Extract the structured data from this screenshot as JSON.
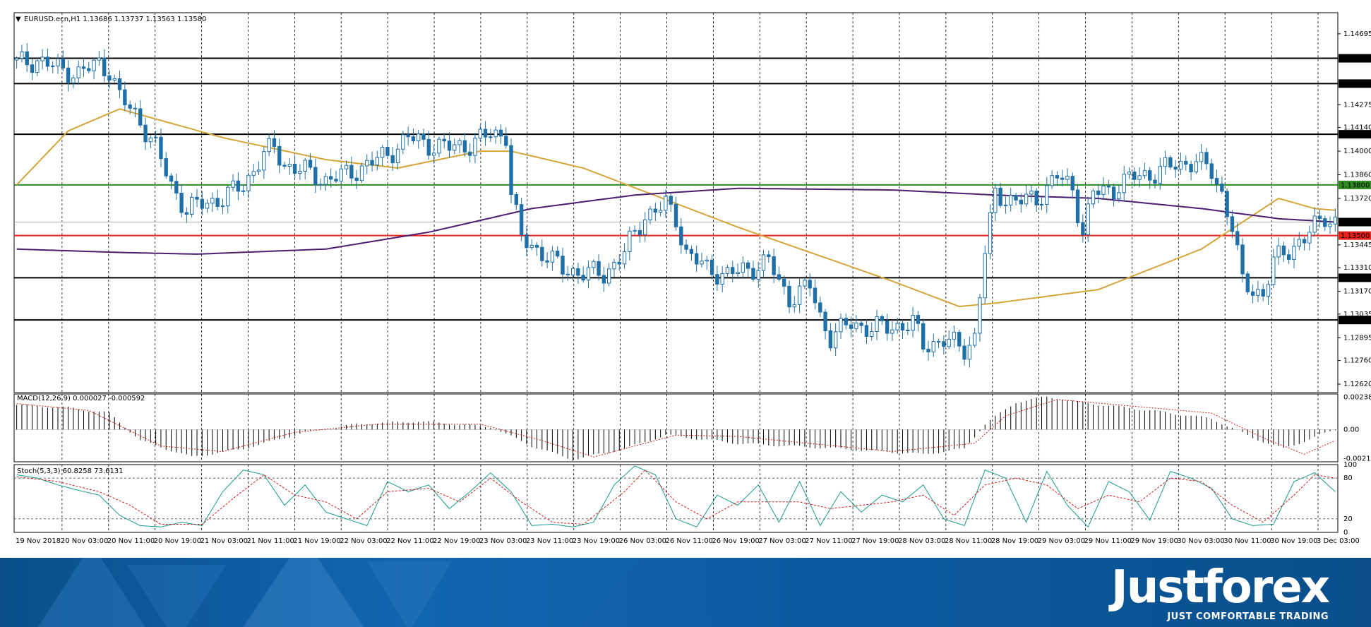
{
  "chart_title": "EURUSD.ecn,H1  1.13686 1.13737 1.13563 1.13580",
  "chart_data": [
    {
      "type": "candlestick",
      "symbol": "EURUSD.ecn,H1",
      "ohlc_last": {
        "open": 1.13686,
        "high": 1.13737,
        "low": 1.13563,
        "close": 1.1358
      },
      "ylim": [
        1.1257,
        1.1482
      ],
      "price_ticks": [
        "1.14695",
        "1.14275",
        "1.14140",
        "1.14000",
        "1.13860",
        "1.13720",
        "1.13445",
        "1.13310",
        "1.13170",
        "1.13035",
        "1.12895",
        "1.12760",
        "1.12620"
      ],
      "x_labels": [
        "19 Nov 2018",
        "20 Nov 03:00",
        "20 Nov 11:00",
        "20 Nov 19:00",
        "21 Nov 03:00",
        "21 Nov 11:00",
        "21 Nov 19:00",
        "22 Nov 03:00",
        "22 Nov 11:00",
        "22 Nov 19:00",
        "23 Nov 03:00",
        "23 Nov 11:00",
        "23 Nov 19:00",
        "26 Nov 03:00",
        "26 Nov 11:00",
        "26 Nov 19:00",
        "27 Nov 03:00",
        "27 Nov 11:00",
        "27 Nov 19:00",
        "28 Nov 03:00",
        "28 Nov 11:00",
        "28 Nov 19:00",
        "29 Nov 03:00",
        "29 Nov 11:00",
        "29 Nov 19:00",
        "30 Nov 03:00",
        "30 Nov 11:00",
        "30 Nov 19:00",
        "3 Dec 03:00"
      ],
      "horizontal_levels": [
        {
          "label": "1.14550",
          "value": 1.1455,
          "color": "#000000"
        },
        {
          "label": "1.14400",
          "value": 1.144,
          "color": "#000000"
        },
        {
          "label": "1.14100",
          "value": 1.141,
          "color": "#000000"
        },
        {
          "label": "1.13800",
          "value": 1.138,
          "color": "#2e8b22"
        },
        {
          "label": "1.13500",
          "value": 1.135,
          "color": "#e8201a"
        },
        {
          "label": "1.13250",
          "value": 1.1325,
          "color": "#000000"
        },
        {
          "label": "1.13000",
          "value": 1.13,
          "color": "#000000"
        }
      ],
      "current_price": {
        "label": "1.13580",
        "value": 1.1358
      },
      "close_path": [
        [
          0,
          1.1452
        ],
        [
          4,
          1.1454
        ],
        [
          8,
          1.1449
        ],
        [
          12,
          1.1446
        ],
        [
          16,
          1.1452
        ],
        [
          18,
          1.1448
        ],
        [
          20,
          1.1432
        ],
        [
          24,
          1.1418
        ],
        [
          27,
          1.1402
        ],
        [
          30,
          1.138
        ],
        [
          33,
          1.1365
        ],
        [
          36,
          1.1369
        ],
        [
          40,
          1.1372
        ],
        [
          44,
          1.138
        ],
        [
          48,
          1.1398
        ],
        [
          50,
          1.1402
        ],
        [
          52,
          1.1392
        ],
        [
          56,
          1.1388
        ],
        [
          60,
          1.1383
        ],
        [
          64,
          1.1386
        ],
        [
          68,
          1.1392
        ],
        [
          72,
          1.1398
        ],
        [
          76,
          1.1408
        ],
        [
          80,
          1.1404
        ],
        [
          84,
          1.1402
        ],
        [
          88,
          1.1404
        ],
        [
          92,
          1.141
        ],
        [
          95,
          1.141
        ],
        [
          96,
          1.1375
        ],
        [
          98,
          1.1348
        ],
        [
          102,
          1.134
        ],
        [
          106,
          1.133
        ],
        [
          110,
          1.1328
        ],
        [
          114,
          1.1327
        ],
        [
          118,
          1.134
        ],
        [
          122,
          1.1362
        ],
        [
          126,
          1.1368
        ],
        [
          128,
          1.136
        ],
        [
          130,
          1.134
        ],
        [
          134,
          1.133
        ],
        [
          138,
          1.1327
        ],
        [
          142,
          1.133
        ],
        [
          146,
          1.1335
        ],
        [
          148,
          1.1322
        ],
        [
          150,
          1.1313
        ],
        [
          154,
          1.132
        ],
        [
          156,
          1.1302
        ],
        [
          158,
          1.129
        ],
        [
          162,
          1.1298
        ],
        [
          166,
          1.1295
        ],
        [
          170,
          1.1296
        ],
        [
          174,
          1.1298
        ],
        [
          176,
          1.1285
        ],
        [
          180,
          1.1288
        ],
        [
          184,
          1.1283
        ],
        [
          186,
          1.129
        ],
        [
          188,
          1.134
        ],
        [
          190,
          1.1375
        ],
        [
          194,
          1.137
        ],
        [
          198,
          1.1372
        ],
        [
          202,
          1.1385
        ],
        [
          205,
          1.1378
        ],
        [
          207,
          1.1352
        ],
        [
          209,
          1.1375
        ],
        [
          213,
          1.1378
        ],
        [
          217,
          1.1385
        ],
        [
          221,
          1.1387
        ],
        [
          225,
          1.1392
        ],
        [
          229,
          1.1394
        ],
        [
          232,
          1.1388
        ],
        [
          234,
          1.1375
        ],
        [
          236,
          1.1355
        ],
        [
          238,
          1.1322
        ],
        [
          242,
          1.1315
        ],
        [
          244,
          1.1334
        ],
        [
          246,
          1.134
        ],
        [
          250,
          1.1348
        ],
        [
          254,
          1.1362
        ],
        [
          256,
          1.1358
        ]
      ]
    },
    {
      "type": "line",
      "name": "Moving averages (overlay)",
      "series": [
        {
          "name": "MA fast",
          "color": "#d4a53a",
          "points": [
            [
              0,
              1.138
            ],
            [
              10,
              1.1412
            ],
            [
              20,
              1.1425
            ],
            [
              40,
              1.1408
            ],
            [
              60,
              1.1395
            ],
            [
              74,
              1.139
            ],
            [
              90,
              1.14
            ],
            [
              96,
              1.14
            ],
            [
              110,
              1.139
            ],
            [
              140,
              1.1355
            ],
            [
              170,
              1.1323
            ],
            [
              183,
              1.1308
            ],
            [
              190,
              1.131
            ],
            [
              210,
              1.1318
            ],
            [
              230,
              1.1342
            ],
            [
              245,
              1.1372
            ],
            [
              252,
              1.1366
            ],
            [
              256,
              1.1365
            ]
          ]
        },
        {
          "name": "MA slow",
          "color": "#4b1d6e",
          "points": [
            [
              0,
              1.1342
            ],
            [
              20,
              1.134
            ],
            [
              35,
              1.1339
            ],
            [
              60,
              1.1342
            ],
            [
              80,
              1.1352
            ],
            [
              100,
              1.1366
            ],
            [
              120,
              1.1374
            ],
            [
              140,
              1.1378
            ],
            [
              170,
              1.1377
            ],
            [
              190,
              1.1374
            ],
            [
              210,
              1.1372
            ],
            [
              230,
              1.1366
            ],
            [
              245,
              1.136
            ],
            [
              256,
              1.1358
            ]
          ]
        }
      ]
    },
    {
      "type": "bar",
      "title": "MACD(12,26,9) 0.000027 -0.000592",
      "ylim": [
        -0.00235,
        0.0026
      ],
      "y_ticks": [
        "0.00238",
        "0.00",
        "-0.002125"
      ],
      "histogram_path": [
        [
          0,
          0.0018
        ],
        [
          10,
          0.0016
        ],
        [
          18,
          0.0012
        ],
        [
          24,
          -0.0008
        ],
        [
          34,
          -0.002
        ],
        [
          44,
          -0.0014
        ],
        [
          56,
          -0.0002
        ],
        [
          66,
          0.0004
        ],
        [
          78,
          0.0006
        ],
        [
          92,
          0.0002
        ],
        [
          100,
          -0.0012
        ],
        [
          108,
          -0.0022
        ],
        [
          118,
          -0.0014
        ],
        [
          126,
          -0.0004
        ],
        [
          140,
          -0.001
        ],
        [
          160,
          -0.0014
        ],
        [
          176,
          -0.0018
        ],
        [
          184,
          -0.0014
        ],
        [
          188,
          0.0004
        ],
        [
          194,
          0.002
        ],
        [
          200,
          0.0024
        ],
        [
          206,
          0.002
        ],
        [
          220,
          0.0014
        ],
        [
          232,
          0.0008
        ],
        [
          240,
          -0.0006
        ],
        [
          246,
          -0.0014
        ],
        [
          256,
          0.0
        ]
      ],
      "signal_path": [
        [
          0,
          0.0019
        ],
        [
          14,
          0.0014
        ],
        [
          28,
          -0.0012
        ],
        [
          40,
          -0.0016
        ],
        [
          54,
          -0.0002
        ],
        [
          70,
          0.0004
        ],
        [
          90,
          0.0004
        ],
        [
          102,
          -0.0008
        ],
        [
          112,
          -0.002
        ],
        [
          128,
          -0.0004
        ],
        [
          140,
          -0.0005
        ],
        [
          170,
          -0.0016
        ],
        [
          186,
          -0.001
        ],
        [
          192,
          0.001
        ],
        [
          202,
          0.0022
        ],
        [
          214,
          0.0018
        ],
        [
          232,
          0.0012
        ],
        [
          242,
          -0.0006
        ],
        [
          250,
          -0.0018
        ],
        [
          256,
          -0.0008
        ]
      ]
    },
    {
      "type": "line",
      "title": "Stoch(5,3,3) 60.8258 73.6131",
      "ylim": [
        0,
        100
      ],
      "y_ticks": [
        "100",
        "80",
        "20",
        "0"
      ],
      "series": [
        {
          "name": "%K",
          "color": "#1a9a8a",
          "points": [
            [
              0,
              85
            ],
            [
              4,
              80
            ],
            [
              8,
              70
            ],
            [
              12,
              62
            ],
            [
              16,
              55
            ],
            [
              20,
              25
            ],
            [
              24,
              10
            ],
            [
              28,
              8
            ],
            [
              32,
              15
            ],
            [
              36,
              10
            ],
            [
              40,
              60
            ],
            [
              44,
              92
            ],
            [
              48,
              85
            ],
            [
              52,
              40
            ],
            [
              56,
              70
            ],
            [
              60,
              30
            ],
            [
              64,
              20
            ],
            [
              68,
              10
            ],
            [
              72,
              75
            ],
            [
              76,
              60
            ],
            [
              80,
              70
            ],
            [
              84,
              35
            ],
            [
              88,
              60
            ],
            [
              92,
              88
            ],
            [
              96,
              60
            ],
            [
              100,
              10
            ],
            [
              104,
              12
            ],
            [
              108,
              8
            ],
            [
              112,
              15
            ],
            [
              116,
              70
            ],
            [
              120,
              98
            ],
            [
              124,
              85
            ],
            [
              128,
              20
            ],
            [
              132,
              8
            ],
            [
              136,
              55
            ],
            [
              140,
              40
            ],
            [
              144,
              70
            ],
            [
              148,
              15
            ],
            [
              152,
              75
            ],
            [
              156,
              10
            ],
            [
              160,
              60
            ],
            [
              164,
              30
            ],
            [
              168,
              55
            ],
            [
              172,
              45
            ],
            [
              176,
              70
            ],
            [
              180,
              20
            ],
            [
              184,
              10
            ],
            [
              188,
              92
            ],
            [
              192,
              80
            ],
            [
              196,
              15
            ],
            [
              200,
              90
            ],
            [
              204,
              40
            ],
            [
              208,
              8
            ],
            [
              212,
              75
            ],
            [
              216,
              60
            ],
            [
              220,
              18
            ],
            [
              224,
              90
            ],
            [
              228,
              80
            ],
            [
              232,
              65
            ],
            [
              236,
              20
            ],
            [
              240,
              10
            ],
            [
              244,
              12
            ],
            [
              248,
              75
            ],
            [
              252,
              88
            ],
            [
              256,
              60
            ]
          ]
        },
        {
          "name": "%D",
          "color": "#d02020",
          "points": [
            [
              0,
              82
            ],
            [
              8,
              75
            ],
            [
              16,
              60
            ],
            [
              22,
              40
            ],
            [
              28,
              12
            ],
            [
              36,
              12
            ],
            [
              42,
              50
            ],
            [
              48,
              85
            ],
            [
              54,
              55
            ],
            [
              60,
              45
            ],
            [
              66,
              20
            ],
            [
              72,
              60
            ],
            [
              80,
              65
            ],
            [
              86,
              45
            ],
            [
              92,
              80
            ],
            [
              98,
              45
            ],
            [
              104,
              15
            ],
            [
              110,
              12
            ],
            [
              118,
              60
            ],
            [
              122,
              92
            ],
            [
              128,
              45
            ],
            [
              134,
              20
            ],
            [
              140,
              45
            ],
            [
              146,
              45
            ],
            [
              152,
              45
            ],
            [
              158,
              35
            ],
            [
              164,
              40
            ],
            [
              170,
              45
            ],
            [
              176,
              55
            ],
            [
              182,
              25
            ],
            [
              188,
              70
            ],
            [
              194,
              80
            ],
            [
              200,
              70
            ],
            [
              206,
              35
            ],
            [
              212,
              55
            ],
            [
              218,
              45
            ],
            [
              224,
              80
            ],
            [
              230,
              75
            ],
            [
              236,
              40
            ],
            [
              242,
              15
            ],
            [
              248,
              55
            ],
            [
              252,
              85
            ],
            [
              256,
              80
            ]
          ]
        }
      ]
    }
  ],
  "brand": {
    "name": "Justforex",
    "tagline": "JUST COMFORTABLE TRADING",
    "colors": {
      "bg": "#0b5aa0",
      "text": "#ffffff"
    }
  }
}
